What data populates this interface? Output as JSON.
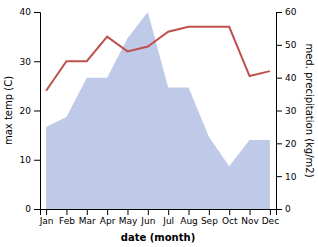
{
  "chart_data": {
    "type": "line",
    "categories": [
      "Jan",
      "Feb",
      "Mar",
      "Apr",
      "May",
      "Jun",
      "Jul",
      "Aug",
      "Sep",
      "Oct",
      "Nov",
      "Dec"
    ],
    "xlabel": "date (month)",
    "ylabel": "max temp (C)",
    "y2label": "med. precipitation (kg/m2)",
    "ylim": [
      0,
      40
    ],
    "yticks": [
      0,
      10,
      20,
      30,
      40
    ],
    "y2lim": [
      0,
      60
    ],
    "y2ticks": [
      0,
      10,
      20,
      30,
      40,
      50,
      60
    ],
    "series": [
      {
        "type": "area",
        "axis": "y2",
        "color": "#bfc9e8",
        "values": [
          25,
          28,
          40,
          40,
          52,
          60,
          37,
          37,
          22,
          13,
          21,
          21
        ]
      },
      {
        "type": "line",
        "color": "#c0504d",
        "values": [
          24,
          30,
          30,
          35,
          32,
          33,
          36,
          37,
          37,
          37,
          27,
          28
        ]
      }
    ]
  }
}
